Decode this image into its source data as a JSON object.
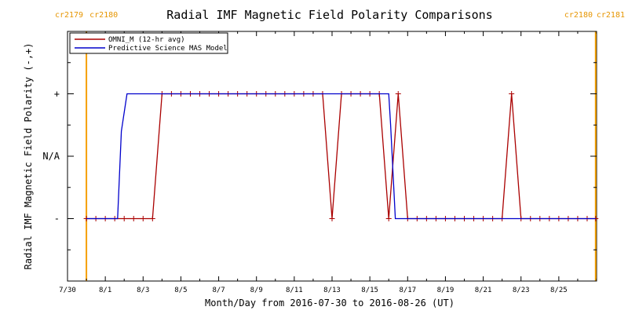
{
  "chart_data": {
    "type": "line",
    "title": "Radial IMF Magnetic Field Polarity Comparisons",
    "xlabel": "Month/Day from 2016-07-30 to 2016-08-26 (UT)",
    "ylabel": "Radial IMF Magnetic Field Polarity (-,+)",
    "xlim": [
      0,
      28
    ],
    "ylim": [
      -2,
      2
    ],
    "x_ticks": [
      {
        "v": 0,
        "label": "7/30"
      },
      {
        "v": 2,
        "label": "8/1"
      },
      {
        "v": 4,
        "label": "8/3"
      },
      {
        "v": 6,
        "label": "8/5"
      },
      {
        "v": 8,
        "label": "8/7"
      },
      {
        "v": 10,
        "label": "8/9"
      },
      {
        "v": 12,
        "label": "8/11"
      },
      {
        "v": 14,
        "label": "8/13"
      },
      {
        "v": 16,
        "label": "8/15"
      },
      {
        "v": 18,
        "label": "8/17"
      },
      {
        "v": 20,
        "label": "8/19"
      },
      {
        "v": 22,
        "label": "8/21"
      },
      {
        "v": 24,
        "label": "8/23"
      },
      {
        "v": 26,
        "label": "8/25"
      }
    ],
    "y_ticks": [
      {
        "v": 1,
        "label": "+"
      },
      {
        "v": 0,
        "label": "N/A"
      },
      {
        "v": -1,
        "label": "-"
      }
    ],
    "carrington": [
      {
        "x": 1.0,
        "left": "cr2179",
        "right": "cr2180"
      },
      {
        "x": 27.95,
        "left": "cr2180",
        "right": "cr2181"
      }
    ],
    "legend_placement": "top-left",
    "series": [
      {
        "name": "OMNI_M (12-hr avg)",
        "color": "#aa0000",
        "markers": true,
        "x": [
          1.0,
          1.5,
          2.0,
          2.5,
          3.0,
          3.5,
          4.0,
          4.5,
          5.0,
          5.5,
          6.0,
          6.5,
          7.0,
          7.5,
          8.0,
          8.5,
          9.0,
          9.5,
          10.0,
          10.5,
          11.0,
          11.5,
          12.0,
          12.5,
          13.0,
          13.5,
          14.0,
          14.5,
          15.0,
          15.5,
          16.0,
          16.5,
          17.0,
          17.5,
          18.0,
          18.5,
          19.0,
          19.5,
          20.0,
          20.5,
          21.0,
          21.5,
          22.0,
          22.5,
          23.0,
          23.5,
          24.0,
          24.5,
          25.0,
          25.5,
          26.0,
          26.5,
          27.0,
          27.5,
          27.95
        ],
        "y": [
          -1,
          -1,
          -1,
          -1,
          -1,
          -1,
          -1,
          -1,
          1,
          1,
          1,
          1,
          1,
          1,
          1,
          1,
          1,
          1,
          1,
          1,
          1,
          1,
          1,
          1,
          1,
          1,
          -1,
          1,
          1,
          1,
          1,
          1,
          -1,
          1,
          -1,
          -1,
          -1,
          -1,
          -1,
          -1,
          -1,
          -1,
          -1,
          -1,
          -1,
          1,
          -1,
          -1,
          -1,
          -1,
          -1,
          -1,
          -1,
          -1,
          -1
        ]
      },
      {
        "name": "Predictive Science MAS Model",
        "color": "#0000cc",
        "markers": false,
        "x": [
          1.0,
          2.65,
          2.85,
          3.15,
          17.0,
          17.1,
          17.35,
          27.95
        ],
        "y": [
          -1,
          -1,
          0.4,
          1,
          1,
          0.5,
          -1,
          -1
        ]
      }
    ]
  }
}
